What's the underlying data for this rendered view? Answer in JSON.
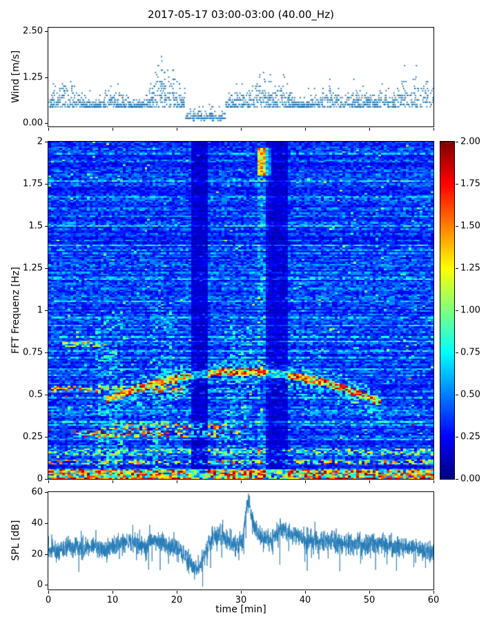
{
  "title": "2017-05-17 03:00-03:00 (40.00_Hz)",
  "figure": {
    "background": "#ffffff",
    "axis_color": "#000000",
    "series_color": "#1f77b4"
  },
  "chart_data": [
    {
      "type": "scatter",
      "id": "wind",
      "ylabel": "Wind [m/s]",
      "xlim": [
        0,
        60
      ],
      "ylim": [
        0,
        2.5
      ],
      "ytick_values": [
        0,
        1.25,
        2.5
      ],
      "ytick_labels": [
        "0.00",
        "1.25",
        "2.50"
      ],
      "xtick_values": [
        0,
        10,
        20,
        30,
        40,
        50,
        60
      ],
      "marker_color": "#1f77b4",
      "gen": {
        "n_points": 1700,
        "base_level": 0.42,
        "quantize_step": 0.0625,
        "lull_interval": [
          21.3,
          27.6
        ],
        "lull_level": 0.08,
        "max_value": 2.5,
        "gust_clusters": [
          {
            "t": 3,
            "h": 0.9
          },
          {
            "t": 10,
            "h": 0.5
          },
          {
            "t": 17.5,
            "h": 1.3
          },
          {
            "t": 19.5,
            "h": 0.8
          },
          {
            "t": 29.5,
            "h": 0.6
          },
          {
            "t": 33,
            "h": 1.0
          },
          {
            "t": 36,
            "h": 0.8
          },
          {
            "t": 43,
            "h": 0.7
          },
          {
            "t": 47.5,
            "h": 0.6
          },
          {
            "t": 52,
            "h": 0.5
          },
          {
            "t": 56,
            "h": 1.1
          },
          {
            "t": 59,
            "h": 0.9
          }
        ]
      }
    },
    {
      "type": "heatmap",
      "id": "spectrogram",
      "ylabel": "FFT Frequenz [Hz]",
      "xlim": [
        0,
        60
      ],
      "ylim": [
        0,
        2
      ],
      "ytick_values": [
        0,
        0.25,
        0.5,
        0.75,
        1,
        1.25,
        1.5,
        1.75,
        2
      ],
      "ytick_labels": [
        "0",
        "0.25",
        "0.5",
        "0.75",
        "1",
        "1.25",
        "1.5",
        "1.75",
        "2"
      ],
      "xtick_values": [
        0,
        10,
        20,
        30,
        40,
        50,
        60
      ],
      "colormap": "jet",
      "value_range": [
        0,
        2
      ],
      "colorbar": {
        "tick_values": [
          0,
          0.25,
          0.5,
          0.75,
          1,
          1.25,
          1.5,
          1.75,
          2
        ],
        "tick_labels": [
          "0.00",
          "0.25",
          "0.50",
          "0.75",
          "1.00",
          "1.25",
          "1.50",
          "1.75",
          "2.00"
        ]
      },
      "features": {
        "background_level": 0.33,
        "hot_band_below_hz": 0.055,
        "quiet_columns": [
          [
            22.3,
            24.7,
            0.45
          ],
          [
            33.9,
            37.3,
            0.5
          ]
        ],
        "loud_columns": [
          [
            32.7,
            34.3,
            1.3
          ]
        ],
        "tonal_bands": [
          {
            "f": 0.1,
            "t": [
              0,
              60
            ],
            "s": 0.8
          },
          {
            "f": 0.165,
            "t": [
              0,
              60
            ],
            "s": 0.6
          },
          {
            "f": 0.27,
            "t": [
              4,
              30
            ],
            "s": 1.0
          },
          {
            "f": 0.315,
            "t": [
              8,
              28
            ],
            "s": 0.9
          },
          {
            "f": 0.53,
            "t": [
              0,
              22
            ],
            "s": 0.9
          },
          {
            "f": 0.8,
            "t": [
              2,
              9
            ],
            "s": 0.7
          }
        ],
        "arc": {
          "t_range": [
            9,
            52
          ],
          "t_peak": 30,
          "f_peak": 0.635,
          "curvature": 0.00038,
          "level": 1.4
        },
        "cyan_smears": [
          [
            16.3,
            19.3,
            1.05
          ],
          [
            27.5,
            31.5,
            0.9
          ],
          [
            7.5,
            11.5,
            1.0
          ]
        ],
        "top_patch": {
          "t": [
            32.4,
            34.6
          ],
          "f": [
            1.8,
            1.96
          ],
          "level": 1.0
        }
      }
    },
    {
      "type": "line",
      "id": "spl",
      "ylabel": "SPL [dB]",
      "xlabel": "time [min]",
      "xlim": [
        0,
        60
      ],
      "ylim": [
        0,
        60
      ],
      "ytick_values": [
        0,
        20,
        40,
        60
      ],
      "ytick_labels": [
        "0",
        "20",
        "40",
        "60"
      ],
      "xtick_values": [
        0,
        10,
        20,
        30,
        40,
        50,
        60
      ],
      "xtick_labels": [
        "0",
        "10",
        "20",
        "30",
        "40",
        "50",
        "60"
      ],
      "line_color": "#1f77b4",
      "noise_amplitude": 3.2,
      "baseline": {
        "t": [
          0,
          1.5,
          3,
          5,
          7,
          9,
          11,
          13,
          15,
          16.5,
          18,
          20,
          21,
          22,
          23,
          23.6,
          24.5,
          25.5,
          27,
          28.5,
          29.5,
          30.3,
          30.8,
          31.2,
          31.8,
          32.5,
          33.5,
          34.5,
          35.5,
          36.5,
          38,
          40,
          42,
          44,
          46,
          48,
          50,
          52,
          54,
          56,
          58,
          60
        ],
        "spl": [
          24,
          21,
          25,
          23,
          26,
          22,
          27,
          28,
          24,
          29,
          26,
          24,
          20,
          14,
          8,
          12,
          22,
          30,
          32,
          28,
          25,
          30,
          48,
          54,
          42,
          34,
          30,
          28,
          33,
          36,
          33,
          30,
          28,
          29,
          26,
          27,
          26,
          27,
          24,
          25,
          23,
          19
        ]
      }
    }
  ]
}
